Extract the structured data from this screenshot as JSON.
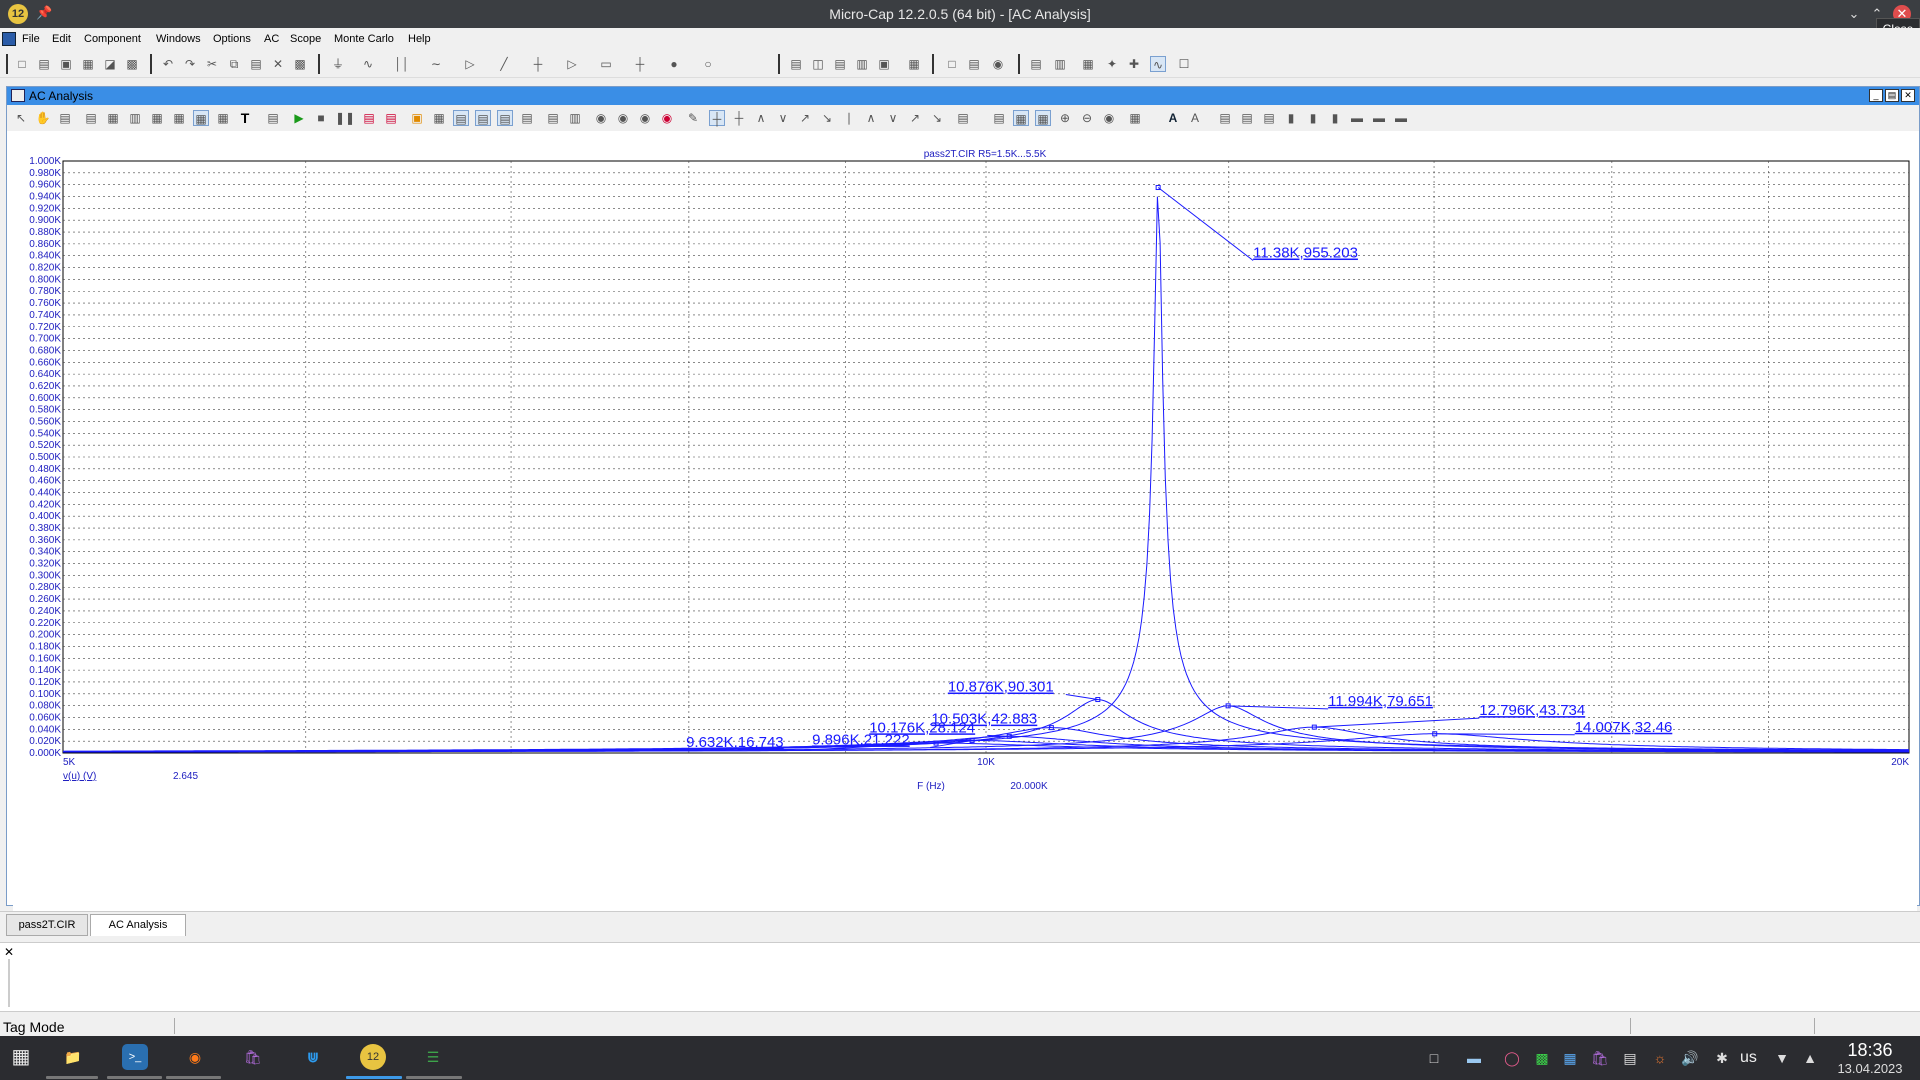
{
  "window": {
    "title": "Micro-Cap 12.2.0.5 (64 bit) - [AC Analysis]",
    "tooltip": "Close"
  },
  "menu": {
    "items": [
      "File",
      "Edit",
      "Component",
      "Windows",
      "Options",
      "AC",
      "Scope",
      "Monte Carlo",
      "Help"
    ]
  },
  "child_window": {
    "title": "AC Analysis"
  },
  "chart_data": {
    "type": "line",
    "title": "pass2T.CIR R5=1.5K...5.5K",
    "xlabel": "F (Hz)",
    "ylabel": "v(u) (V)",
    "x_scale": "log",
    "xlim": [
      5000,
      20000
    ],
    "ylim": [
      0,
      1000
    ],
    "x_tick_labels": [
      "5K",
      "10K",
      "20K"
    ],
    "y_tick_labels": [
      "1.000K",
      "0.980K",
      "0.960K",
      "0.940K",
      "0.920K",
      "0.900K",
      "0.880K",
      "0.860K",
      "0.840K",
      "0.820K",
      "0.800K",
      "0.780K",
      "0.760K",
      "0.740K",
      "0.720K",
      "0.700K",
      "0.680K",
      "0.660K",
      "0.640K",
      "0.620K",
      "0.600K",
      "0.580K",
      "0.560K",
      "0.540K",
      "0.520K",
      "0.500K",
      "0.480K",
      "0.460K",
      "0.440K",
      "0.420K",
      "0.400K",
      "0.380K",
      "0.360K",
      "0.340K",
      "0.320K",
      "0.300K",
      "0.280K",
      "0.260K",
      "0.240K",
      "0.220K",
      "0.200K",
      "0.180K",
      "0.160K",
      "0.140K",
      "0.120K",
      "0.100K",
      "0.080K",
      "0.060K",
      "0.040K",
      "0.020K",
      "0.000K"
    ],
    "cursor_left_value": "2.645",
    "cursor_x_value": "20.000K",
    "grid": true,
    "line_color": "#1a1aff",
    "peaks": [
      {
        "x": 11380,
        "y": 955.203,
        "label": "11.38K,955.203",
        "width": 0.006
      },
      {
        "x": 10876,
        "y": 90.301,
        "label": "10.876K,90.301",
        "width": 0.045
      },
      {
        "x": 11994,
        "y": 79.651,
        "label": "11.994K,79.651",
        "width": 0.05
      },
      {
        "x": 10503,
        "y": 42.883,
        "label": "10.503K,42.883",
        "width": 0.08
      },
      {
        "x": 12796,
        "y": 43.734,
        "label": "12.796K,43.734",
        "width": 0.08
      },
      {
        "x": 10176,
        "y": 28.124,
        "label": "10.176K,28.124",
        "width": 0.11
      },
      {
        "x": 14007,
        "y": 32.46,
        "label": "14.007K,32.46",
        "width": 0.13
      },
      {
        "x": 9896,
        "y": 21.222,
        "label": "9.896K,21.222",
        "width": 0.14
      },
      {
        "x": 9632,
        "y": 16.743,
        "label": "9.632K,16.743",
        "width": 0.17
      }
    ]
  },
  "tabs": {
    "doc1": "pass2T.CIR",
    "doc2": "AC Analysis"
  },
  "statusbar": {
    "mode": "Tag Mode"
  },
  "taskbar": {
    "layout": "us",
    "time": "18:36",
    "date": "13.04.2023"
  }
}
